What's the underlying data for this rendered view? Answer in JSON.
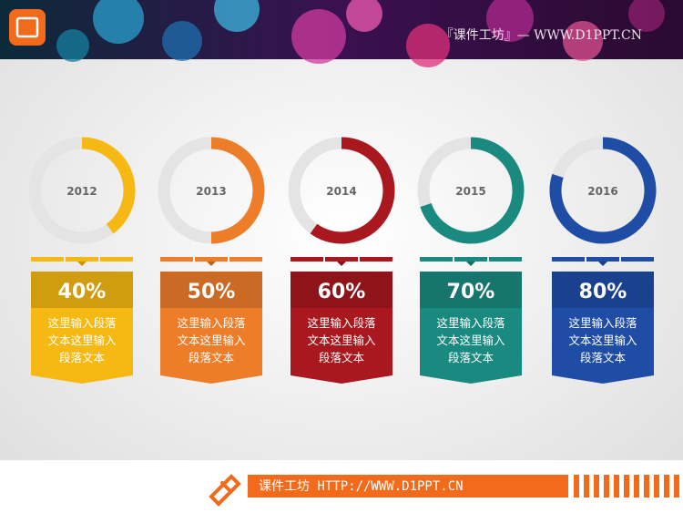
{
  "header": {
    "title": "『课件工坊』— WWW.D1PPT.CN"
  },
  "chart_data": [
    {
      "type": "donut",
      "title": "2012",
      "values": [
        40
      ],
      "value_labels": [
        "40%"
      ],
      "color": "#f6b913",
      "annotation": "这里输入段落文本这里输入段落文本"
    },
    {
      "type": "donut",
      "title": "2013",
      "values": [
        50
      ],
      "value_labels": [
        "50%"
      ],
      "color": "#ee7d2a",
      "annotation": "这里输入段落文本这里输入段落文本"
    },
    {
      "type": "donut",
      "title": "2014",
      "values": [
        60
      ],
      "value_labels": [
        "60%"
      ],
      "color": "#a8181e",
      "annotation": "这里输入段落文本这里输入段落文本"
    },
    {
      "type": "donut",
      "title": "2015",
      "values": [
        70
      ],
      "value_labels": [
        "70%"
      ],
      "color": "#1a8a80",
      "annotation": "这里输入段落文本这里输入段落文本"
    },
    {
      "type": "donut",
      "title": "2016",
      "values": [
        80
      ],
      "value_labels": [
        "80%"
      ],
      "color": "#1f4da6",
      "annotation": "这里输入段落文本这里输入段落文本"
    }
  ],
  "footer": {
    "text": "课件工坊 HTTP://WWW.D1PPT.CN"
  }
}
